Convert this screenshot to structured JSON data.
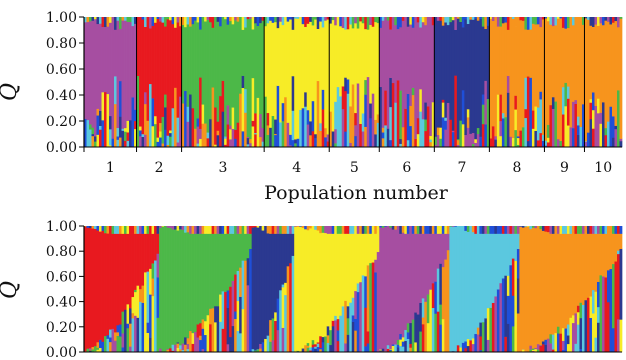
{
  "chart_data": [
    {
      "type": "bar",
      "subtype": "stacked-admixture",
      "ylabel": "Q̂",
      "xlabel": "Population number",
      "ylim": [
        0,
        1
      ],
      "y_ticks": [
        "0.00",
        "0.20",
        "0.40",
        "0.60",
        "0.80",
        "1.00"
      ],
      "categories": [
        "1",
        "2",
        "3",
        "4",
        "5",
        "6",
        "7",
        "8",
        "9",
        "10"
      ],
      "population_widths": [
        0.099,
        0.082,
        0.155,
        0.122,
        0.095,
        0.1,
        0.104,
        0.1,
        0.074,
        0.069
      ],
      "population_dominant_cluster": [
        "magenta",
        "red",
        "green",
        "yellow",
        "yellow",
        "magenta",
        "navy",
        "orange",
        "orange",
        "orange"
      ],
      "sorted_by_membership": false
    },
    {
      "type": "bar",
      "subtype": "stacked-admixture",
      "ylabel": "Q̂",
      "ylim": [
        0,
        1
      ],
      "y_ticks": [
        "0.00",
        "0.20",
        "0.40",
        "0.60",
        "0.80",
        "1.00"
      ],
      "sorted_by_membership": true,
      "cluster_order": [
        "red",
        "green",
        "navy",
        "yellow",
        "magenta",
        "cyan",
        "orange"
      ],
      "cluster_widths": [
        0.14,
        0.17,
        0.08,
        0.16,
        0.13,
        0.13,
        0.19
      ]
    }
  ],
  "clusters": {
    "red": "#e8191f",
    "green": "#4cb848",
    "navy": "#2b3990",
    "yellow": "#f7ec27",
    "magenta": "#a64ea1",
    "cyan": "#5bc8df",
    "orange": "#f7941d",
    "blue": "#1f4fd8"
  }
}
